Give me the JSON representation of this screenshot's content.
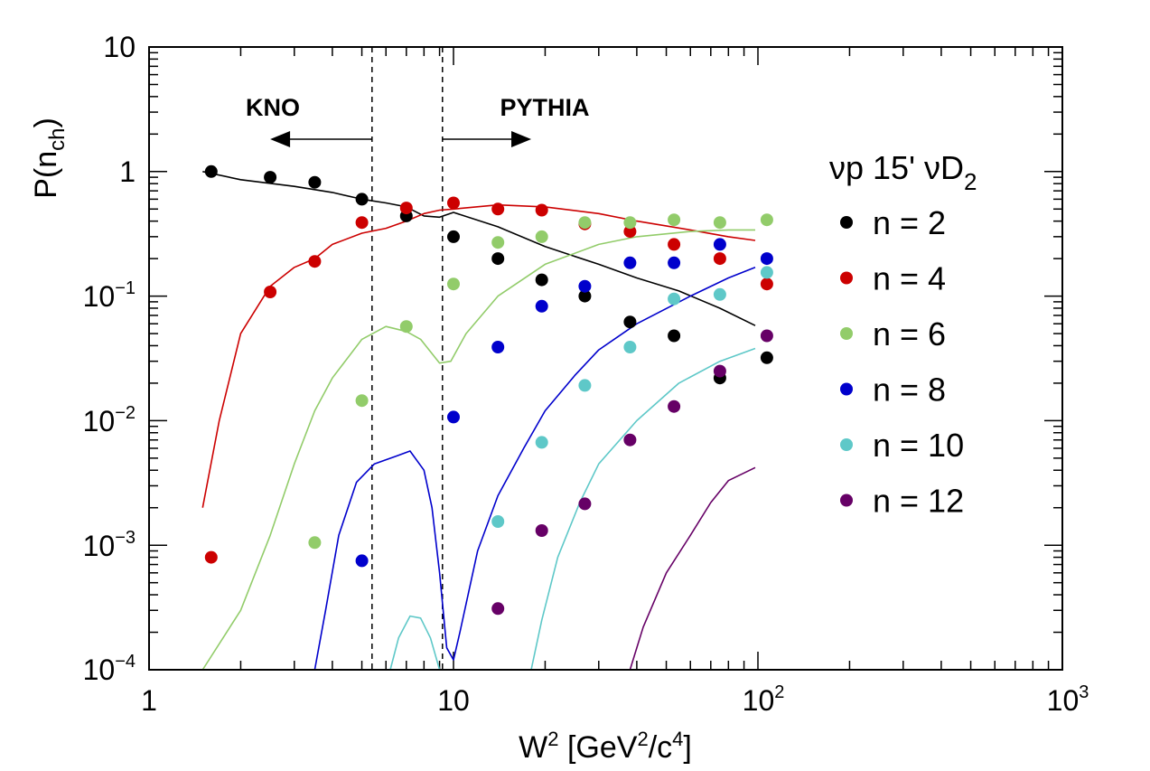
{
  "chart_data": {
    "type": "scatter",
    "x_scale": "log",
    "y_scale": "log",
    "xlim": [
      1,
      1000
    ],
    "ylim": [
      0.0001,
      10
    ],
    "xlabel": {
      "main": "W",
      "sup1": "2",
      "rest1": " [GeV",
      "sup2": "2",
      "rest2": "/c",
      "sup3": "4",
      "rest3": "]"
    },
    "ylabel": {
      "main": "P(n",
      "sub": "ch",
      "close": ")"
    },
    "x_ticks": [
      {
        "value": 1,
        "base": "1",
        "exp": ""
      },
      {
        "value": 10,
        "base": "10",
        "exp": ""
      },
      {
        "value": 100,
        "base": "10",
        "exp": "2"
      },
      {
        "value": 1000,
        "base": "10",
        "exp": "3"
      }
    ],
    "y_ticks": [
      {
        "value": 10,
        "base": "10",
        "exp": ""
      },
      {
        "value": 1,
        "base": "1",
        "exp": ""
      },
      {
        "value": 0.1,
        "base": "10",
        "exp": "−1"
      },
      {
        "value": 0.01,
        "base": "10",
        "exp": "−2"
      },
      {
        "value": 0.001,
        "base": "10",
        "exp": "−3"
      },
      {
        "value": 0.0001,
        "base": "10",
        "exp": "−4"
      }
    ],
    "annotations": {
      "kno": {
        "text": "KNO",
        "boundary_x": 5.4,
        "arrow_to_x": 2.5
      },
      "pythia": {
        "text": "PYTHIA",
        "boundary_x": 9.2,
        "arrow_to_x": 18
      }
    },
    "legend": {
      "title": {
        "pre": "νp 15' νD",
        "sub": "2"
      },
      "position": "right"
    },
    "series": [
      {
        "name": "n = 2",
        "color": "#000000",
        "points": [
          [
            1.6,
            1.0
          ],
          [
            2.5,
            0.9
          ],
          [
            3.5,
            0.82
          ],
          [
            5.0,
            0.6
          ],
          [
            7.0,
            0.44
          ],
          [
            10.0,
            0.3
          ],
          [
            14.0,
            0.2
          ],
          [
            19.5,
            0.135
          ],
          [
            27.0,
            0.1
          ],
          [
            38.0,
            0.062
          ],
          [
            53.0,
            0.048
          ],
          [
            75.0,
            0.022
          ],
          [
            107.0,
            0.032
          ]
        ],
        "curve": [
          [
            1.5,
            1.0
          ],
          [
            2.0,
            0.86
          ],
          [
            3.0,
            0.76
          ],
          [
            4.0,
            0.68
          ],
          [
            5.0,
            0.6
          ],
          [
            6.0,
            0.56
          ],
          [
            7.0,
            0.52
          ],
          [
            8.0,
            0.44
          ],
          [
            9.0,
            0.43
          ],
          [
            10.0,
            0.47
          ],
          [
            14.0,
            0.36
          ],
          [
            20.0,
            0.25
          ],
          [
            30.0,
            0.18
          ],
          [
            40.0,
            0.14
          ],
          [
            55.0,
            0.11
          ],
          [
            75.0,
            0.08
          ],
          [
            98.0,
            0.058
          ]
        ]
      },
      {
        "name": "n = 4",
        "color": "#cc0000",
        "points": [
          [
            1.6,
            0.0008
          ],
          [
            2.5,
            0.108
          ],
          [
            3.5,
            0.19
          ],
          [
            5.0,
            0.39
          ],
          [
            7.0,
            0.51
          ],
          [
            10.0,
            0.56
          ],
          [
            14.0,
            0.5
          ],
          [
            19.5,
            0.49
          ],
          [
            27.0,
            0.38
          ],
          [
            38.0,
            0.33
          ],
          [
            53.0,
            0.26
          ],
          [
            75.0,
            0.2
          ],
          [
            107.0,
            0.125
          ]
        ],
        "curve": [
          [
            1.5,
            0.002
          ],
          [
            1.7,
            0.01
          ],
          [
            2.0,
            0.05
          ],
          [
            2.5,
            0.12
          ],
          [
            3.0,
            0.17
          ],
          [
            3.5,
            0.2
          ],
          [
            4.0,
            0.26
          ],
          [
            5.0,
            0.32
          ],
          [
            6.0,
            0.35
          ],
          [
            7.0,
            0.4
          ],
          [
            8.0,
            0.46
          ],
          [
            9.0,
            0.49
          ],
          [
            10.0,
            0.5
          ],
          [
            14.0,
            0.54
          ],
          [
            20.0,
            0.52
          ],
          [
            30.0,
            0.46
          ],
          [
            40.0,
            0.4
          ],
          [
            60.0,
            0.34
          ],
          [
            80.0,
            0.3
          ],
          [
            98.0,
            0.28
          ]
        ]
      },
      {
        "name": "n = 6",
        "color": "#92cc6a",
        "points": [
          [
            3.5,
            0.00105
          ],
          [
            5.0,
            0.0145
          ],
          [
            7.0,
            0.057
          ],
          [
            10.0,
            0.125
          ],
          [
            14.0,
            0.27
          ],
          [
            19.5,
            0.3
          ],
          [
            27.0,
            0.39
          ],
          [
            38.0,
            0.39
          ],
          [
            53.0,
            0.41
          ],
          [
            75.0,
            0.39
          ],
          [
            107.0,
            0.41
          ]
        ],
        "curve": [
          [
            1.5,
            0.0001
          ],
          [
            2.0,
            0.0003
          ],
          [
            2.5,
            0.0012
          ],
          [
            3.0,
            0.0045
          ],
          [
            3.5,
            0.012
          ],
          [
            4.0,
            0.022
          ],
          [
            5.0,
            0.045
          ],
          [
            6.0,
            0.057
          ],
          [
            7.0,
            0.052
          ],
          [
            7.8,
            0.045
          ],
          [
            9.0,
            0.029
          ],
          [
            9.8,
            0.03
          ],
          [
            11.0,
            0.05
          ],
          [
            14.0,
            0.1
          ],
          [
            20.0,
            0.18
          ],
          [
            30.0,
            0.26
          ],
          [
            40.0,
            0.3
          ],
          [
            60.0,
            0.33
          ],
          [
            80.0,
            0.34
          ],
          [
            98.0,
            0.34
          ]
        ]
      },
      {
        "name": "n = 8",
        "color": "#0000cc",
        "points": [
          [
            5.0,
            0.00075
          ],
          [
            10.0,
            0.0107
          ],
          [
            14.0,
            0.039
          ],
          [
            19.5,
            0.083
          ],
          [
            27.0,
            0.12
          ],
          [
            38.0,
            0.185
          ],
          [
            53.0,
            0.185
          ],
          [
            75.0,
            0.26
          ],
          [
            107.0,
            0.2
          ]
        ],
        "curve": [
          [
            3.5,
            0.0001
          ],
          [
            3.8,
            0.0003
          ],
          [
            4.2,
            0.0012
          ],
          [
            4.8,
            0.0032
          ],
          [
            5.5,
            0.0045
          ],
          [
            6.5,
            0.0052
          ],
          [
            7.2,
            0.0057
          ],
          [
            8.0,
            0.004
          ],
          [
            8.5,
            0.002
          ],
          [
            9.0,
            0.0006
          ],
          [
            9.5,
            0.00015
          ],
          [
            10.0,
            0.00012
          ],
          [
            10.5,
            0.0002
          ],
          [
            12.0,
            0.0009
          ],
          [
            14.0,
            0.0025
          ],
          [
            17.0,
            0.006
          ],
          [
            20.0,
            0.012
          ],
          [
            25.0,
            0.023
          ],
          [
            30.0,
            0.037
          ],
          [
            40.0,
            0.06
          ],
          [
            60.0,
            0.1
          ],
          [
            80.0,
            0.14
          ],
          [
            98.0,
            0.17
          ]
        ]
      },
      {
        "name": "n = 10",
        "color": "#5ec8c8",
        "points": [
          [
            14.0,
            0.00155
          ],
          [
            19.5,
            0.0067
          ],
          [
            27.0,
            0.0192
          ],
          [
            38.0,
            0.039
          ],
          [
            53.0,
            0.095
          ],
          [
            75.0,
            0.103
          ],
          [
            107.0,
            0.155
          ]
        ],
        "curve": [
          [
            6.2,
            0.0001
          ],
          [
            6.6,
            0.00018
          ],
          [
            7.2,
            0.00027
          ],
          [
            7.8,
            0.00026
          ],
          [
            8.4,
            0.00018
          ],
          [
            9.0,
            0.0001
          ],
          [
            18.0,
            0.0001
          ],
          [
            19.5,
            0.00025
          ],
          [
            22.0,
            0.0008
          ],
          [
            26.0,
            0.0022
          ],
          [
            30.0,
            0.0045
          ],
          [
            40.0,
            0.01
          ],
          [
            55.0,
            0.02
          ],
          [
            75.0,
            0.03
          ],
          [
            98.0,
            0.038
          ]
        ]
      },
      {
        "name": "n = 12",
        "color": "#660066",
        "points": [
          [
            14.0,
            0.00031
          ],
          [
            19.5,
            0.00131
          ],
          [
            27.0,
            0.00215
          ],
          [
            38.0,
            0.007
          ],
          [
            53.0,
            0.013
          ],
          [
            75.0,
            0.025
          ],
          [
            107.0,
            0.048
          ]
        ],
        "curve": [
          [
            38.0,
            0.0001
          ],
          [
            42.0,
            0.00022
          ],
          [
            50.0,
            0.0006
          ],
          [
            60.0,
            0.0012
          ],
          [
            70.0,
            0.0022
          ],
          [
            80.0,
            0.0033
          ],
          [
            98.0,
            0.0042
          ]
        ]
      }
    ]
  }
}
